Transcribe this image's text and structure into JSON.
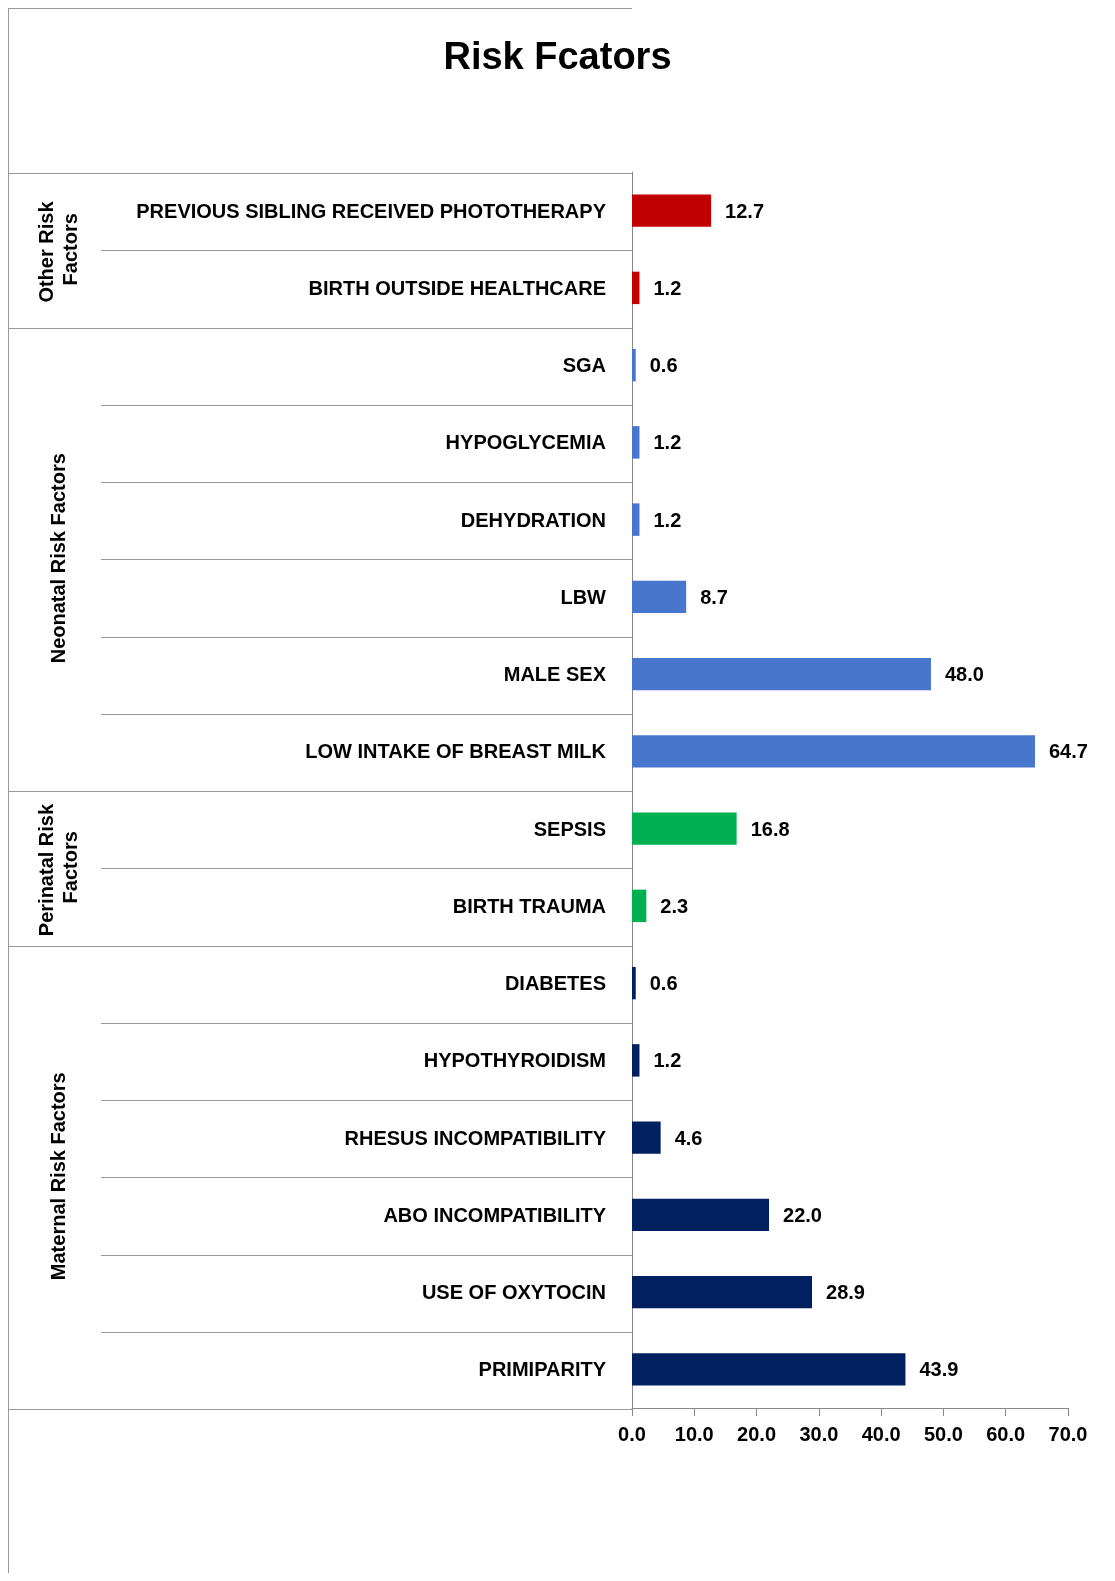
{
  "chart_data": {
    "type": "bar",
    "orientation": "horizontal",
    "title": "Risk Fcators",
    "categories": [
      "PREVIOUS SIBLING RECEIVED PHOTOTHERAPY",
      "BIRTH OUTSIDE HEALTHCARE",
      "SGA",
      "HYPOGLYCEMIA",
      "DEHYDRATION",
      "LBW",
      "MALE SEX",
      "LOW INTAKE OF BREAST MILK",
      "SEPSIS",
      "BIRTH TRAUMA",
      "DIABETES",
      "HYPOTHYROIDISM",
      "RHESUS INCOMPATIBILITY",
      "ABO INCOMPATIBILITY",
      "USE OF OXYTOCIN",
      "PRIMIPARITY"
    ],
    "series": [
      {
        "color": "#c00000",
        "values": [
          12.7,
          1.2,
          null,
          null,
          null,
          null,
          null,
          null,
          null,
          null,
          null,
          null,
          null,
          null,
          null,
          null
        ],
        "value_labels": [
          "12.7",
          "1.2",
          null,
          null,
          null,
          null,
          null,
          null,
          null,
          null,
          null,
          null,
          null,
          null,
          null,
          null
        ]
      },
      {
        "color": "#4776cc",
        "values": [
          null,
          null,
          0.6,
          1.2,
          1.2,
          8.7,
          48.0,
          64.7,
          null,
          null,
          null,
          null,
          null,
          null,
          null,
          null
        ],
        "value_labels": [
          null,
          null,
          "0.6",
          "1.2",
          "1.2",
          "8.7",
          "48.0",
          "64.7",
          null,
          null,
          null,
          null,
          null,
          null,
          null,
          null
        ]
      },
      {
        "color": "#00b050",
        "values": [
          null,
          null,
          null,
          null,
          null,
          null,
          null,
          null,
          16.8,
          2.3,
          null,
          null,
          null,
          null,
          null,
          null
        ],
        "value_labels": [
          null,
          null,
          null,
          null,
          null,
          null,
          null,
          null,
          "16.8",
          "2.3",
          null,
          null,
          null,
          null,
          null,
          null
        ]
      },
      {
        "color": "#002060",
        "values": [
          null,
          null,
          null,
          null,
          null,
          null,
          null,
          null,
          null,
          null,
          0.6,
          1.2,
          4.6,
          22.0,
          28.9,
          43.9
        ],
        "value_labels": [
          null,
          null,
          null,
          null,
          null,
          null,
          null,
          null,
          null,
          null,
          "0.6",
          "1.2",
          "4.6",
          "22.0",
          "28.9",
          "43.9"
        ]
      }
    ],
    "annotations": [
      "Other Risk Factors",
      "Neonatal Risk Factors",
      "Perinatal Risk Factors",
      "Maternal Risk Factors"
    ],
    "xlim": [
      0,
      70
    ],
    "xticks": [
      {
        "value": 0,
        "label": "0.0"
      },
      {
        "value": 10,
        "label": "10.0"
      },
      {
        "value": 20,
        "label": "20.0"
      },
      {
        "value": 30,
        "label": "30.0"
      },
      {
        "value": 40,
        "label": "40.0"
      },
      {
        "value": 50,
        "label": "50.0"
      },
      {
        "value": 60,
        "label": "60.0"
      },
      {
        "value": 70,
        "label": "70.0"
      }
    ]
  }
}
